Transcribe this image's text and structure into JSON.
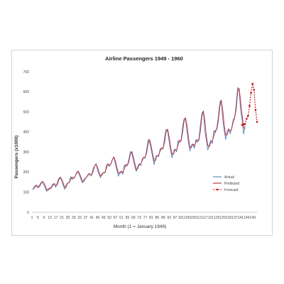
{
  "chart_data": {
    "type": "line",
    "title": "Airline Passengers 1949 - 1960",
    "xlabel": "Month (1 = January 1949)",
    "ylabel": "Passengers (x1000)",
    "xlim": [
      1,
      152
    ],
    "ylim": [
      0,
      700
    ],
    "y_ticks": [
      0,
      100,
      200,
      300,
      400,
      500,
      600,
      700
    ],
    "x_ticks": [
      1,
      5,
      9,
      13,
      17,
      21,
      25,
      29,
      33,
      37,
      41,
      45,
      49,
      53,
      57,
      61,
      65,
      69,
      73,
      77,
      81,
      85,
      89,
      93,
      97,
      101,
      105,
      109,
      113,
      117,
      121,
      125,
      129,
      133,
      137,
      141,
      145,
      149
    ],
    "grid": false,
    "legend_position": "right",
    "series": [
      {
        "name": "Actual",
        "color": "#4f81bd",
        "style": "solid",
        "x": [
          1,
          2,
          3,
          4,
          5,
          6,
          7,
          8,
          9,
          10,
          11,
          12,
          13,
          14,
          15,
          16,
          17,
          18,
          19,
          20,
          21,
          22,
          23,
          24,
          25,
          26,
          27,
          28,
          29,
          30,
          31,
          32,
          33,
          34,
          35,
          36,
          37,
          38,
          39,
          40,
          41,
          42,
          43,
          44,
          45,
          46,
          47,
          48,
          49,
          50,
          51,
          52,
          53,
          54,
          55,
          56,
          57,
          58,
          59,
          60,
          61,
          62,
          63,
          64,
          65,
          66,
          67,
          68,
          69,
          70,
          71,
          72,
          73,
          74,
          75,
          76,
          77,
          78,
          79,
          80,
          81,
          82,
          83,
          84,
          85,
          86,
          87,
          88,
          89,
          90,
          91,
          92,
          93,
          94,
          95,
          96,
          97,
          98,
          99,
          100,
          101,
          102,
          103,
          104,
          105,
          106,
          107,
          108,
          109,
          110,
          111,
          112,
          113,
          114,
          115,
          116,
          117,
          118,
          119,
          120,
          121,
          122,
          123,
          124,
          125,
          126,
          127,
          128,
          129,
          130,
          131,
          132,
          133,
          134,
          135,
          136,
          137,
          138,
          139,
          140,
          141,
          142,
          143,
          144
        ],
        "y": [
          112,
          118,
          132,
          129,
          121,
          135,
          148,
          148,
          136,
          119,
          104,
          118,
          115,
          126,
          141,
          135,
          125,
          149,
          170,
          170,
          158,
          133,
          114,
          140,
          145,
          150,
          178,
          163,
          172,
          178,
          199,
          199,
          184,
          162,
          146,
          166,
          171,
          180,
          193,
          181,
          183,
          218,
          230,
          242,
          209,
          191,
          172,
          194,
          196,
          196,
          236,
          235,
          229,
          243,
          264,
          272,
          237,
          211,
          180,
          201,
          204,
          188,
          235,
          227,
          234,
          264,
          302,
          293,
          259,
          229,
          203,
          229,
          242,
          233,
          267,
          269,
          270,
          315,
          364,
          347,
          312,
          274,
          237,
          278,
          284,
          277,
          317,
          313,
          318,
          374,
          413,
          405,
          355,
          306,
          271,
          306,
          315,
          301,
          356,
          348,
          355,
          422,
          465,
          467,
          404,
          347,
          305,
          336,
          340,
          318,
          362,
          348,
          363,
          435,
          491,
          505,
          404,
          359,
          310,
          337,
          360,
          342,
          406,
          396,
          420,
          472,
          548,
          559,
          463,
          407,
          362,
          405,
          417,
          391,
          419,
          461,
          472,
          535,
          622,
          606,
          508,
          461,
          390,
          432
        ]
      },
      {
        "name": "Predicted",
        "color": "#c0282d",
        "style": "solid",
        "x": [
          2,
          3,
          4,
          5,
          6,
          7,
          8,
          9,
          10,
          11,
          12,
          13,
          14,
          15,
          16,
          17,
          18,
          19,
          20,
          21,
          22,
          23,
          24,
          25,
          26,
          27,
          28,
          29,
          30,
          31,
          32,
          33,
          34,
          35,
          36,
          37,
          38,
          39,
          40,
          41,
          42,
          43,
          44,
          45,
          46,
          47,
          48,
          49,
          50,
          51,
          52,
          53,
          54,
          55,
          56,
          57,
          58,
          59,
          60,
          61,
          62,
          63,
          64,
          65,
          66,
          67,
          68,
          69,
          70,
          71,
          72,
          73,
          74,
          75,
          76,
          77,
          78,
          79,
          80,
          81,
          82,
          83,
          84,
          85,
          86,
          87,
          88,
          89,
          90,
          91,
          92,
          93,
          94,
          95,
          96,
          97,
          98,
          99,
          100,
          101,
          102,
          103,
          104,
          105,
          106,
          107,
          108,
          109,
          110,
          111,
          112,
          113,
          114,
          115,
          116,
          117,
          118,
          119,
          120,
          121,
          122,
          123,
          124,
          125,
          126,
          127,
          128,
          129,
          130,
          131,
          132,
          133,
          134,
          135,
          136,
          137,
          138,
          139,
          140,
          141,
          142,
          143,
          144
        ],
        "y": [
          116,
          125,
          136,
          128,
          126,
          142,
          155,
          146,
          130,
          112,
          111,
          122,
          121,
          136,
          144,
          133,
          137,
          160,
          176,
          164,
          145,
          123,
          125,
          146,
          147,
          165,
          176,
          168,
          180,
          194,
          206,
          191,
          172,
          153,
          155,
          170,
          178,
          190,
          193,
          186,
          201,
          229,
          240,
          225,
          199,
          181,
          185,
          198,
          198,
          222,
          243,
          233,
          240,
          262,
          276,
          255,
          223,
          195,
          192,
          205,
          198,
          218,
          239,
          233,
          252,
          288,
          303,
          276,
          244,
          213,
          218,
          238,
          240,
          258,
          276,
          274,
          298,
          344,
          362,
          330,
          290,
          255,
          260,
          282,
          283,
          305,
          322,
          318,
          350,
          400,
          414,
          378,
          328,
          288,
          290,
          312,
          310,
          336,
          360,
          354,
          393,
          451,
          471,
          434,
          373,
          322,
          322,
          340,
          332,
          350,
          362,
          358,
          405,
          477,
          504,
          455,
          380,
          333,
          326,
          350,
          352,
          380,
          408,
          412,
          452,
          523,
          558,
          509,
          433,
          384,
          386,
          412,
          405,
          416,
          449,
          470,
          512,
          600,
          617,
          553,
          484,
          423,
          414
        ]
      },
      {
        "name": "Forecast",
        "color": "#cc1111",
        "style": "dashed-markers",
        "x": [
          142,
          143,
          144,
          145,
          146,
          147,
          148,
          149,
          150,
          151,
          152
        ],
        "y": [
          435,
          438,
          440,
          465,
          480,
          530,
          595,
          640,
          610,
          510,
          450
        ]
      }
    ]
  }
}
